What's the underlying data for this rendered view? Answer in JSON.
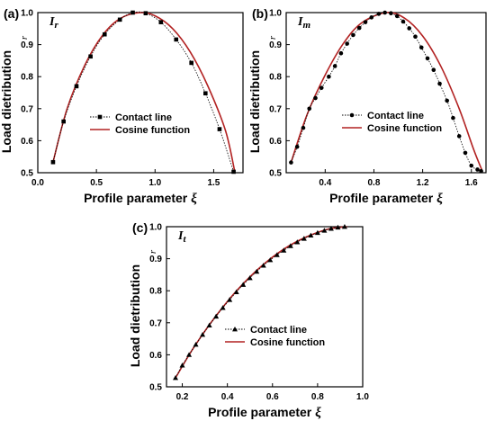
{
  "chart_data": [
    {
      "type": "line",
      "panel_letter": "(a)",
      "panel_tag": "Ir",
      "xlabel": "Profile parameter",
      "xlabel_symbol": "ξ",
      "ylabel": "Load dietribution",
      "ylabel_symbol": "r",
      "xlim": [
        0.0,
        1.75
      ],
      "ylim": [
        0.5,
        1.0
      ],
      "xticks": [
        "0.0",
        "0.5",
        "1.0",
        "1.5"
      ],
      "yticks": [
        "0.5",
        "0.6",
        "0.7",
        "0.8",
        "0.9",
        "1.0"
      ],
      "legend_position": "middle-left",
      "series": [
        {
          "name": "Contact line",
          "marker": "square",
          "x": [
            0.13,
            0.22,
            0.33,
            0.45,
            0.57,
            0.7,
            0.81,
            0.92,
            1.05,
            1.18,
            1.31,
            1.43,
            1.55,
            1.67
          ],
          "y": [
            0.533,
            0.66,
            0.77,
            0.863,
            0.932,
            0.978,
            1.0,
            0.998,
            0.97,
            0.916,
            0.843,
            0.748,
            0.636,
            0.503
          ]
        },
        {
          "name": "Cosine function",
          "line": "solid",
          "color": "#b22222",
          "x": [
            0.13,
            0.25,
            0.4,
            0.55,
            0.7,
            0.87,
            1.0,
            1.15,
            1.3,
            1.45,
            1.6,
            1.68
          ],
          "y": [
            0.533,
            0.7,
            0.835,
            0.928,
            0.981,
            1.0,
            0.99,
            0.95,
            0.877,
            0.771,
            0.632,
            0.503
          ]
        }
      ]
    },
    {
      "type": "line",
      "panel_letter": "(b)",
      "panel_tag": "Im",
      "xlabel": "Profile parameter",
      "xlabel_symbol": "ξ",
      "ylabel": "Load dietribution",
      "ylabel_symbol": "r",
      "xlim": [
        0.08,
        1.72
      ],
      "ylim": [
        0.5,
        1.0
      ],
      "xticks": [
        "0.4",
        "0.8",
        "1.2",
        "1.6"
      ],
      "yticks": [
        "0.5",
        "0.6",
        "0.7",
        "0.8",
        "0.9",
        "1.0"
      ],
      "legend_position": "middle-right",
      "series": [
        {
          "name": "Contact line",
          "marker": "circle",
          "x": [
            0.12,
            0.17,
            0.22,
            0.27,
            0.32,
            0.37,
            0.43,
            0.48,
            0.53,
            0.58,
            0.63,
            0.68,
            0.73,
            0.78,
            0.84,
            0.89,
            0.94,
            0.99,
            1.04,
            1.09,
            1.14,
            1.19,
            1.24,
            1.29,
            1.34,
            1.4,
            1.45,
            1.5,
            1.55,
            1.6,
            1.65,
            1.68
          ],
          "y": [
            0.532,
            0.581,
            0.64,
            0.7,
            0.733,
            0.765,
            0.8,
            0.833,
            0.873,
            0.903,
            0.93,
            0.952,
            0.97,
            0.985,
            0.996,
            1.0,
            0.998,
            0.989,
            0.972,
            0.951,
            0.925,
            0.891,
            0.857,
            0.821,
            0.778,
            0.725,
            0.671,
            0.614,
            0.562,
            0.522,
            0.51,
            0.505
          ]
        },
        {
          "name": "Cosine function",
          "line": "solid",
          "color": "#b22222",
          "x": [
            0.12,
            0.25,
            0.4,
            0.55,
            0.7,
            0.9,
            1.05,
            1.2,
            1.35,
            1.5,
            1.62,
            1.69
          ],
          "y": [
            0.532,
            0.68,
            0.805,
            0.904,
            0.968,
            1.0,
            0.983,
            0.927,
            0.832,
            0.7,
            0.571,
            0.505
          ]
        }
      ]
    },
    {
      "type": "line",
      "panel_letter": "(c)",
      "panel_tag": "It",
      "xlabel": "Profile parameter",
      "xlabel_symbol": "ξ",
      "ylabel": "Load dietribution",
      "ylabel_symbol": "r",
      "xlim": [
        0.13,
        1.0
      ],
      "ylim": [
        0.5,
        1.0
      ],
      "xticks": [
        "0.2",
        "0.4",
        "0.6",
        "0.8",
        "1.0"
      ],
      "yticks": [
        "0.5",
        "0.6",
        "0.7",
        "0.8",
        "0.9",
        "1.0"
      ],
      "legend_position": "middle-right",
      "series": [
        {
          "name": "Contact line",
          "marker": "triangle",
          "x": [
            0.17,
            0.2,
            0.23,
            0.26,
            0.29,
            0.32,
            0.35,
            0.38,
            0.41,
            0.44,
            0.47,
            0.5,
            0.53,
            0.56,
            0.59,
            0.62,
            0.65,
            0.68,
            0.71,
            0.74,
            0.77,
            0.8,
            0.83,
            0.86,
            0.89,
            0.92
          ],
          "y": [
            0.528,
            0.567,
            0.6,
            0.632,
            0.663,
            0.692,
            0.72,
            0.747,
            0.772,
            0.796,
            0.819,
            0.84,
            0.86,
            0.879,
            0.896,
            0.912,
            0.926,
            0.94,
            0.952,
            0.963,
            0.973,
            0.981,
            0.988,
            0.994,
            0.998,
            1.0
          ]
        },
        {
          "name": "Cosine function",
          "line": "solid",
          "color": "#b22222",
          "x": [
            0.17,
            0.25,
            0.35,
            0.45,
            0.55,
            0.65,
            0.75,
            0.85,
            0.93
          ],
          "y": [
            0.528,
            0.622,
            0.722,
            0.807,
            0.876,
            0.93,
            0.968,
            0.993,
            1.0
          ]
        }
      ]
    }
  ]
}
